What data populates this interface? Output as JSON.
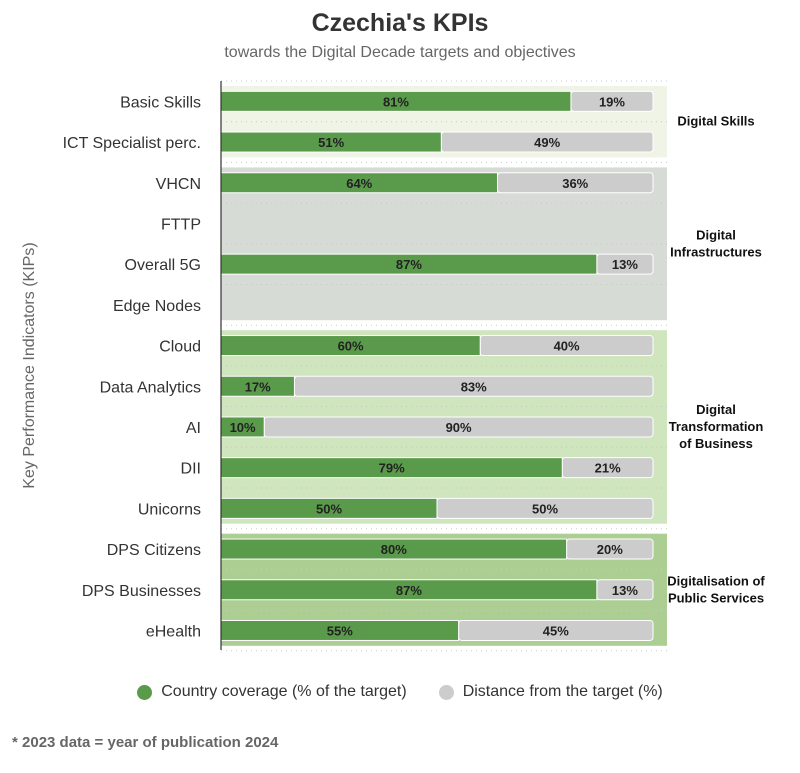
{
  "chart_data": {
    "type": "bar",
    "orientation": "horizontal",
    "stacked": true,
    "title": "Czechia's KPIs",
    "subtitle": "towards the Digital Decade targets and objectives",
    "ylabel": "Key Performance Indicators (KIPs)",
    "xlim": [
      0,
      100
    ],
    "categories": [
      "Basic Skills",
      "ICT Specialist perc.",
      "VHCN",
      "FTTP",
      "Overall 5G",
      "Edge Nodes",
      "Cloud",
      "Data Analytics",
      "AI",
      "DII",
      "Unicorns",
      "DPS Citizens",
      "DPS Businesses",
      "eHealth"
    ],
    "series": [
      {
        "name": "Country coverage (% of the target)",
        "color": "#5a9a4b",
        "values": [
          81,
          51,
          64,
          null,
          87,
          null,
          60,
          17,
          10,
          79,
          50,
          80,
          87,
          55
        ]
      },
      {
        "name": "Distance from the target (%)",
        "color": "#cccccc",
        "values": [
          19,
          49,
          36,
          null,
          13,
          null,
          40,
          83,
          90,
          21,
          50,
          20,
          13,
          45
        ]
      }
    ],
    "groups": [
      {
        "label": "Digital Skills",
        "label_lines": [
          "Digital Skills"
        ],
        "start": 0,
        "end": 1,
        "color": "#f0f4e6"
      },
      {
        "label": "Digital Infrastructures",
        "label_lines": [
          "Digital",
          "Infrastructures"
        ],
        "start": 2,
        "end": 5,
        "color": "#d7dbd5"
      },
      {
        "label": "Digital Transformation of Business",
        "label_lines": [
          "Digital",
          "Transformation",
          "of Business"
        ],
        "start": 6,
        "end": 10,
        "color": "#cfe5bd"
      },
      {
        "label": "Digitalisation of Public Services",
        "label_lines": [
          "Digitalisation of",
          "Public Services"
        ],
        "start": 11,
        "end": 13,
        "color": "#acce93"
      }
    ],
    "legend_position": "bottom",
    "grid": true
  },
  "footnote": "* 2023 data = year of publication 2024"
}
